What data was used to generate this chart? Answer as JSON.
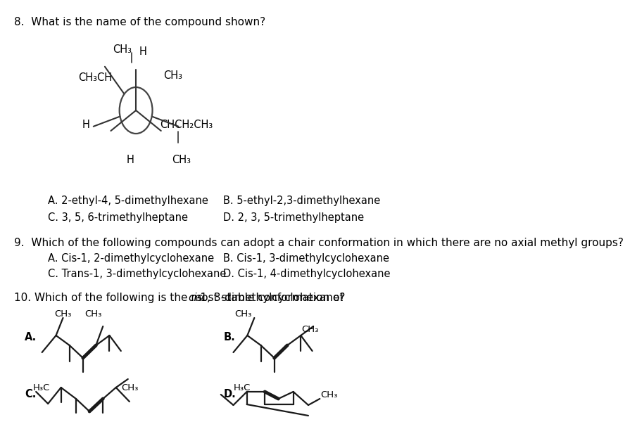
{
  "bg_color": "#ffffff",
  "text_color": "#000000",
  "q8_text": "8.  What is the name of the compound shown?",
  "q9_line1": "9.  Which of the following compounds can adopt a chair conformation in which there are no axial methyl groups?",
  "q10_pre": "10. Which of the following is the most stable conformation of ",
  "q10_italic": "cis",
  "q10_post": "-1, 3-dimethylcyclohexane?",
  "ans8_A": "A. 2-ethyl-4, 5-dimethylhexane",
  "ans8_B": "B. 5-ethyl-2,3-dimethylhexane",
  "ans8_C": "C. 3, 5, 6-trimethylheptane",
  "ans8_D": "D. 2, 3, 5-trimethylheptane",
  "ans9_A": "A. Cis-1, 2-dimethylcyclohexane",
  "ans9_B": "B. Cis-1, 3-dimethylcyclohexane",
  "ans9_C": "C. Trans-1, 3-dimethylcyclohexane",
  "ans9_D": "D. Cis-1, 4-dimethylcyclohexane",
  "fq": 11,
  "fans": 10.5,
  "fchem": 10.5
}
